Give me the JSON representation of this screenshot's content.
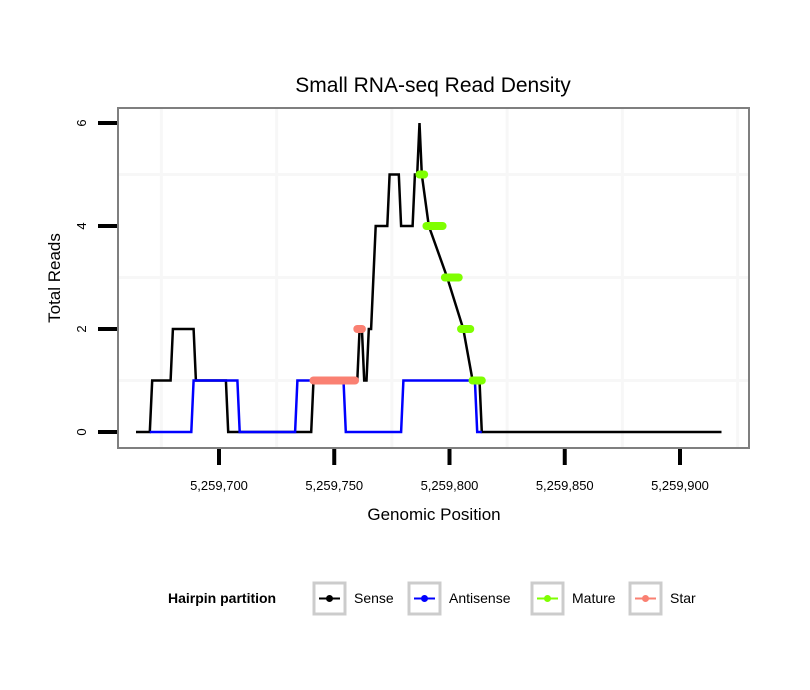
{
  "chart_data": {
    "type": "line",
    "title": "Small RNA-seq Read Density",
    "xlabel": "Genomic Position",
    "ylabel": "Total Reads",
    "xlim": [
      5259668,
      5259931
    ],
    "ylim": [
      -0.3,
      6.3
    ],
    "x_ticks": [
      5259700,
      5259750,
      5259800,
      5259850,
      5259900
    ],
    "x_tick_labels": [
      "5,259,700",
      "5,259,750",
      "5,259,800",
      "5,259,850",
      "5,259,900"
    ],
    "y_ticks": [
      0,
      2,
      4,
      6
    ],
    "y_tick_labels": [
      "0",
      "2",
      "4",
      "6"
    ],
    "grid": true,
    "legend": {
      "title": "Hairpin partition",
      "position": "bottom",
      "entries": [
        {
          "name": "Sense",
          "color": "#000000"
        },
        {
          "name": "Antisense",
          "color": "#0000ff"
        },
        {
          "name": "Mature",
          "color": "#7fff00"
        },
        {
          "name": "Star",
          "color": "#fa8072"
        }
      ]
    },
    "series": [
      {
        "name": "Sense",
        "color": "#000000",
        "points": [
          [
            5259664,
            0
          ],
          [
            5259670,
            0
          ],
          [
            5259671,
            1
          ],
          [
            5259679,
            1
          ],
          [
            5259680,
            2
          ],
          [
            5259689,
            2
          ],
          [
            5259690,
            1
          ],
          [
            5259703,
            1
          ],
          [
            5259704,
            0
          ],
          [
            5259740,
            0
          ],
          [
            5259741,
            1
          ],
          [
            5259760,
            1
          ],
          [
            5259761,
            2
          ],
          [
            5259762,
            2
          ],
          [
            5259763,
            1
          ],
          [
            5259764,
            1
          ],
          [
            5259765,
            2
          ],
          [
            5259766,
            2
          ],
          [
            5259768,
            4
          ],
          [
            5259773,
            4
          ],
          [
            5259774,
            5
          ],
          [
            5259778,
            5
          ],
          [
            5259779,
            4
          ],
          [
            5259784,
            4
          ],
          [
            5259785,
            5
          ],
          [
            5259786,
            5
          ],
          [
            5259787,
            6
          ],
          [
            5259788,
            5
          ],
          [
            5259791,
            4
          ],
          [
            5259799,
            3
          ],
          [
            5259806,
            2
          ],
          [
            5259810,
            1
          ],
          [
            5259813,
            1
          ],
          [
            5259814,
            0
          ],
          [
            5259918,
            0
          ]
        ]
      },
      {
        "name": "Antisense",
        "color": "#0000ff",
        "points": [
          [
            5259670,
            0
          ],
          [
            5259688,
            0
          ],
          [
            5259689,
            1
          ],
          [
            5259708,
            1
          ],
          [
            5259709,
            0
          ],
          [
            5259733,
            0
          ],
          [
            5259734,
            1
          ],
          [
            5259754,
            1
          ],
          [
            5259755,
            0
          ],
          [
            5259779,
            0
          ],
          [
            5259780,
            1
          ],
          [
            5259811,
            1
          ],
          [
            5259812,
            0
          ],
          [
            5259814,
            0
          ]
        ]
      },
      {
        "name": "Mature",
        "color": "#7fff00",
        "segments": [
          [
            5259787,
            5259789,
            5
          ],
          [
            5259790,
            5259797,
            4
          ],
          [
            5259798,
            5259804,
            3
          ],
          [
            5259805,
            5259809,
            2
          ],
          [
            5259810,
            5259814,
            1
          ]
        ]
      },
      {
        "name": "Star",
        "color": "#fa8072",
        "segments": [
          [
            5259741,
            5259759,
            1
          ],
          [
            5259760,
            5259762,
            2
          ]
        ]
      }
    ]
  }
}
